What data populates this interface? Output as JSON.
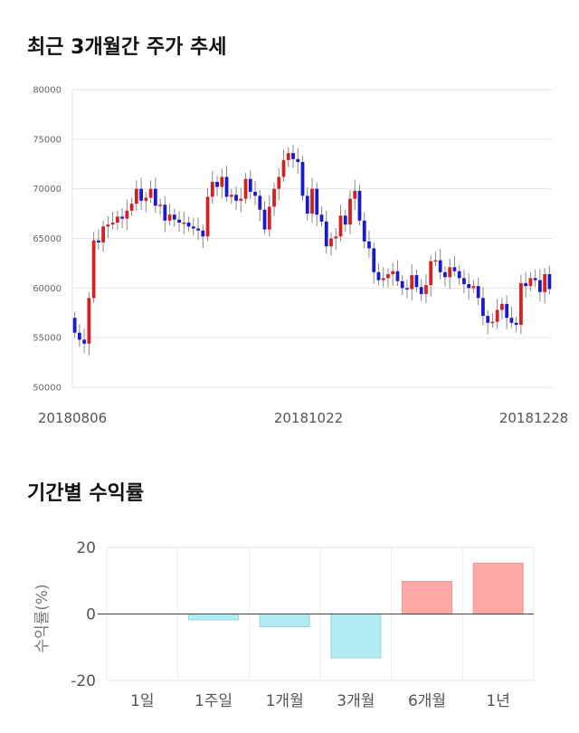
{
  "titles": {
    "stock_trend": "최근 3개월간 주가 추세",
    "period_returns": "기간별 수익률"
  },
  "colors": {
    "up": "#d42020",
    "down": "#1a1acc",
    "positive_bar": "#ffa8a8",
    "negative_bar": "#b0ecf2"
  },
  "chart_data": [
    {
      "type": "candlestick",
      "title": "최근 3개월간 주가 추세",
      "ylim": [
        50000,
        80000
      ],
      "yticks": [
        "80000",
        "75000",
        "70000",
        "65000",
        "60000",
        "55000",
        "50000"
      ],
      "xtick_labels": [
        "20180806",
        "20181022",
        "20181228"
      ],
      "close": [
        55500,
        54800,
        54400,
        59000,
        64800,
        64600,
        66200,
        66400,
        66600,
        67200,
        67000,
        67800,
        68500,
        70000,
        68800,
        69100,
        70000,
        68300,
        68400,
        66800,
        67400,
        66900,
        66600,
        66600,
        66200,
        66000,
        65800,
        65200,
        69200,
        70700,
        70200,
        71200,
        69200,
        69400,
        68800,
        69000,
        71000,
        69700,
        69300,
        67900,
        65900,
        68200,
        70000,
        71200,
        72900,
        73600,
        73000,
        72700,
        69300,
        67500,
        70000,
        67400,
        66700,
        64200,
        65000,
        65200,
        67300,
        66400,
        69000,
        69800,
        66800,
        64700,
        64000,
        61600,
        60800,
        61000,
        61400,
        61700,
        60700,
        60000,
        59900,
        61300,
        60100,
        59400,
        60300,
        62700,
        62800,
        61600,
        61100,
        62100,
        61700,
        61000,
        60400,
        60000,
        60200,
        59000,
        57200,
        56500,
        56600,
        57800,
        58400,
        57000,
        56500,
        56300,
        60500,
        60200,
        61000,
        60800,
        59600,
        61400,
        59900
      ],
      "sampled_note_removed": true
    },
    {
      "type": "bar",
      "title": "기간별 수익률",
      "ylabel": "수익률(%)",
      "categories": [
        "1일",
        "1주일",
        "1개월",
        "3개월",
        "6개월",
        "1년"
      ],
      "values": [
        0,
        -1.8,
        -3.8,
        -13.2,
        9.8,
        15.3
      ],
      "ylim": [
        -20,
        20
      ],
      "yticks": [
        "20",
        "0",
        "-20"
      ]
    }
  ]
}
